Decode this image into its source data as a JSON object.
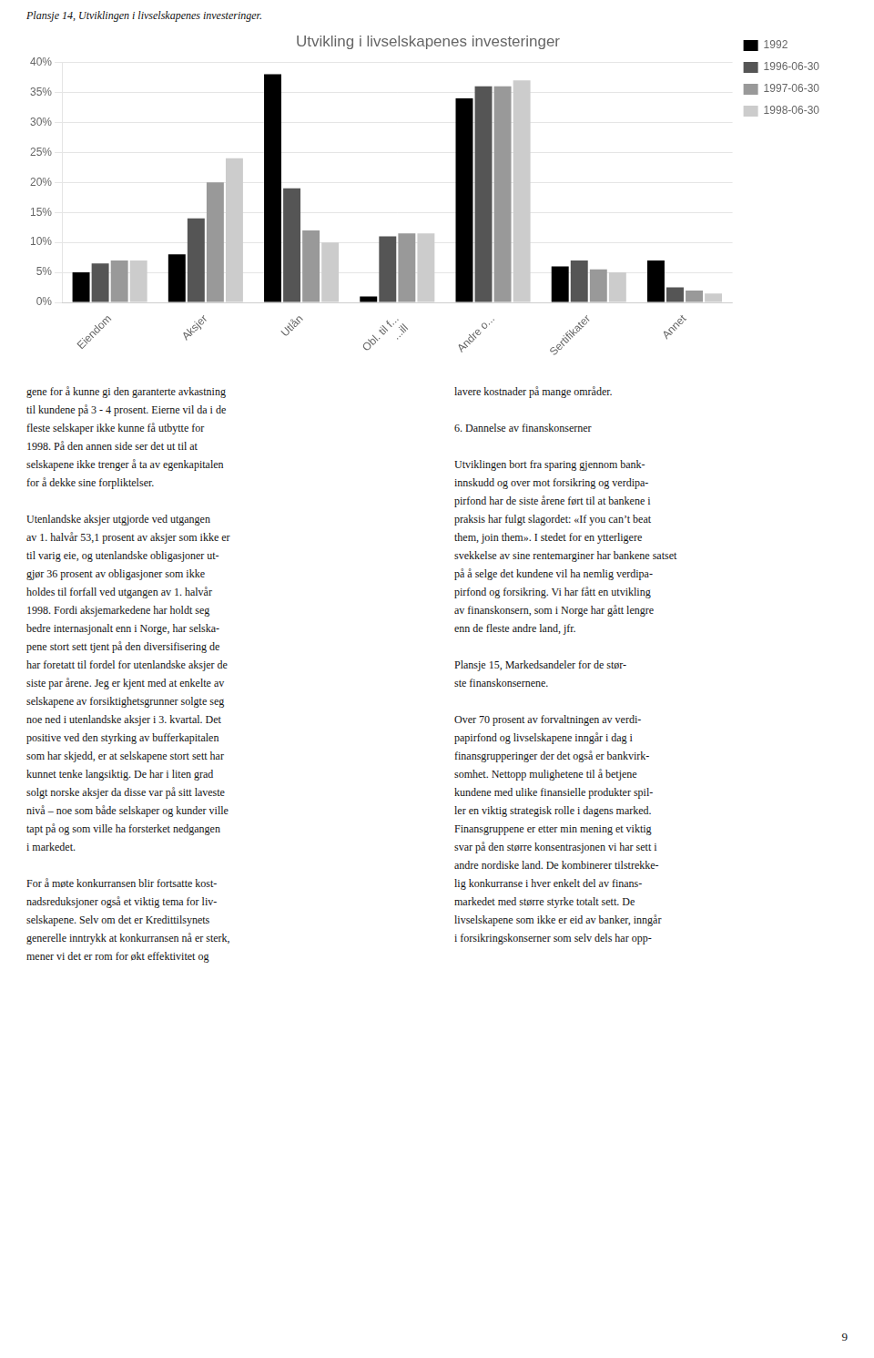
{
  "chart_data": {
    "type": "bar",
    "title": "Utvikling i livselskapenes investeringer",
    "categories": [
      "Eiendom",
      "Aksjer",
      "Utlån",
      "Obl. til f...\n   ...ill",
      "Andre o...",
      "Sertifikater",
      "Annet"
    ],
    "series": [
      {
        "name": "1992",
        "color": "#000000",
        "values": [
          5.0,
          8.0,
          38.0,
          1.0,
          34.0,
          6.0,
          7.0
        ]
      },
      {
        "name": "1996-06-30",
        "color": "#555555",
        "values": [
          6.5,
          14.0,
          19.0,
          11.0,
          36.0,
          7.0,
          2.5
        ]
      },
      {
        "name": "1997-06-30",
        "color": "#999999",
        "values": [
          7.0,
          20.0,
          12.0,
          11.5,
          36.0,
          5.5,
          2.0
        ]
      },
      {
        "name": "1998-06-30",
        "color": "#cccccc",
        "values": [
          7.0,
          24.0,
          10.0,
          11.5,
          37.0,
          5.0,
          1.5
        ]
      }
    ],
    "ylim": [
      0,
      40
    ],
    "yticks": [
      {
        "value": 0,
        "label": "0%"
      },
      {
        "value": 5,
        "label": "5%"
      },
      {
        "value": 10,
        "label": "10%"
      },
      {
        "value": 15,
        "label": "15%"
      },
      {
        "value": 20,
        "label": "20%"
      },
      {
        "value": 25,
        "label": "25%"
      },
      {
        "value": 30,
        "label": "30%"
      },
      {
        "value": 35,
        "label": "35%"
      },
      {
        "value": 40,
        "label": "40%"
      }
    ],
    "grid": true,
    "legend": "right",
    "annotations": {
      "caption": "Plansje 14, Utviklingen i livselskapenes investeringer.",
      "body_left": [
        [
          "gene for å kunne gi den garanterte avkastning",
          "til kundene på 3 - 4 prosent. Eierne vil da i de",
          "fleste selskaper ikke kunne få utbytte for",
          "1998. På den annen side ser det ut til at",
          "selskapene ikke trenger å ta av egenkapitalen",
          "for å dekke sine forpliktelser."
        ],
        [
          "Utenlandske aksjer utgjorde ved utgangen",
          "av 1. halvår 53,1 prosent av aksjer som ikke er",
          "til varig eie, og utenlandske obligasjoner ut-",
          "gjør 36 prosent av obligasjoner som ikke",
          "holdes til forfall ved utgangen av 1. halvår",
          "1998. Fordi aksjemarkedene har holdt seg",
          "bedre internasjonalt enn i Norge, har selska-",
          "pene stort sett tjent på den diversifisering de",
          "har foretatt til fordel for utenlandske aksjer de",
          "siste par årene. Jeg er kjent med at enkelte av",
          "selskapene av forsiktighetsgrunner solgte seg",
          "noe ned i utenlandske aksjer i 3. kvartal. Det",
          "positive ved den styrking av bufferkapitalen",
          "som har skjedd, er at selskapene stort sett har",
          "kunnet tenke langsiktig. De har i liten grad",
          "solgt norske aksjer da disse var på sitt laveste",
          "nivå – noe som både selskaper og kunder ville",
          "tapt på og som ville ha forsterket nedgangen",
          "i markedet."
        ],
        [
          "For å møte konkurransen blir fortsatte kost-",
          "nadsreduksjoner også et viktig tema for liv-",
          "selskapene. Selv om det er Kredittilsynets",
          "generelle inntrykk at konkurransen nå er sterk,",
          "mener vi det er rom for økt effektivitet og"
        ]
      ],
      "body_right": [
        [
          "lavere kostnader på mange områder."
        ],
        [
          "6. Dannelse av finanskonserner"
        ],
        [
          "Utviklingen bort fra sparing gjennom bank-",
          "innskudd og over mot forsikring og verdipa-",
          "pirfond har de siste årene ført til at bankene i",
          "praksis har fulgt slagordet: «If you can’t beat",
          "them, join them». I stedet for en ytterligere",
          "svekkelse av sine rentemarginer har bankene satset",
          "på å selge det kundene vil ha nemlig verdipa-",
          "pirfond og forsikring. Vi har fått en utvikling",
          "av finanskonsern, som i Norge har gått lengre",
          "enn de fleste andre land, jfr."
        ],
        [
          "Plansje 15, Markedsandeler for de stør-",
          "ste finanskonsernene."
        ],
        [
          "Over 70 prosent av forvaltningen av verdi-",
          "papirfond og livselskapene inngår i dag i",
          "finansgrupperinger der det også er bankvirk-",
          "somhet. Nettopp mulighetene til å betjene",
          "kundene med ulike finansielle produkter spil-",
          "ler en viktig strategisk rolle i dagens marked.",
          "Finansgruppene er etter min mening et viktig",
          "svar på den større konsentrasjonen vi har sett i",
          "andre nordiske land. De kombinerer tilstrekke-",
          "lig konkurranse i hver enkelt del av finans-",
          "markedet med større styrke totalt sett. De",
          "livselskapene som ikke er eid av banker, inngår",
          "i forsikringskonserner som selv dels har opp-"
        ]
      ],
      "page_number": "9"
    }
  }
}
